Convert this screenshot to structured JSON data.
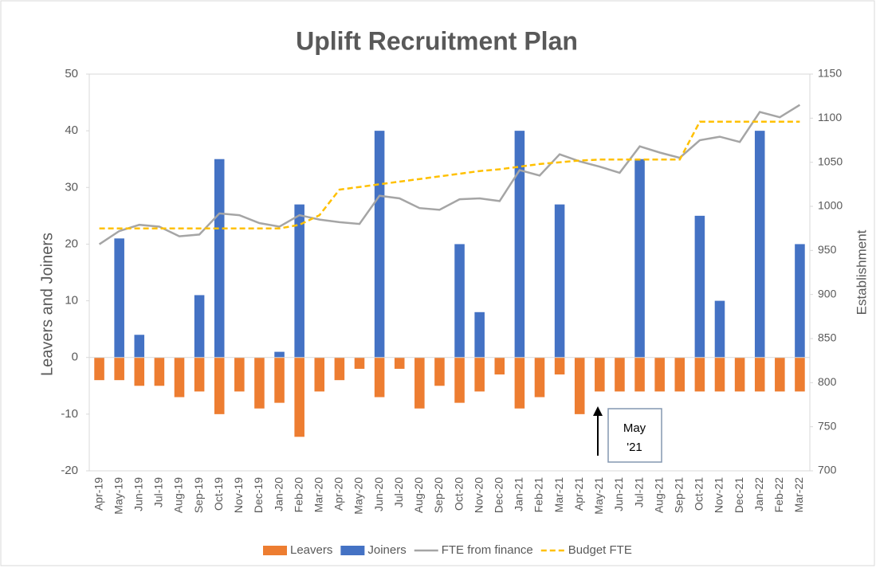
{
  "chart_data": {
    "type": "bar",
    "title": "Uplift Recruitment Plan",
    "y_label": "Leavers and Joiners",
    "y2_label": "Establishment",
    "categories": [
      "Apr-19",
      "May-19",
      "Jun-19",
      "Jul-19",
      "Aug-19",
      "Sep-19",
      "Oct-19",
      "Nov-19",
      "Dec-19",
      "Jan-20",
      "Feb-20",
      "Mar-20",
      "Apr-20",
      "May-20",
      "Jun-20",
      "Jul-20",
      "Aug-20",
      "Sep-20",
      "Oct-20",
      "Nov-20",
      "Dec-20",
      "Jan-21",
      "Feb-21",
      "Mar-21",
      "Apr-21",
      "May-21",
      "Jun-21",
      "Jul-21",
      "Aug-21",
      "Sep-21",
      "Oct-21",
      "Nov-21",
      "Dec-21",
      "Jan-22",
      "Feb-22",
      "Mar-22"
    ],
    "series": [
      {
        "name": "Leavers",
        "type": "bar",
        "color": "#ed7d31",
        "values": [
          -4,
          -4,
          -5,
          -5,
          -7,
          -6,
          -10,
          -6,
          -9,
          -8,
          -14,
          -6,
          -4,
          -2,
          -7,
          -2,
          -9,
          -5,
          -8,
          -6,
          -3,
          -9,
          -7,
          -3,
          -10,
          -6,
          -6,
          -6,
          -6,
          -6,
          -6,
          -6,
          -6,
          -6,
          -6,
          -6
        ]
      },
      {
        "name": "Joiners",
        "type": "bar",
        "color": "#4472c4",
        "values": [
          0,
          21,
          4,
          0,
          0,
          11,
          35,
          0,
          0,
          1,
          27,
          0,
          0,
          0,
          40,
          0,
          0,
          0,
          20,
          8,
          0,
          40,
          0,
          27,
          0,
          0,
          0,
          35,
          0,
          0,
          25,
          10,
          0,
          40,
          0,
          20
        ]
      },
      {
        "name": "FTE from finance",
        "type": "line",
        "axis": "y2",
        "color": "#a5a5a5",
        "values": [
          957,
          972,
          979,
          977,
          966,
          968,
          992,
          990,
          981,
          977,
          990,
          985,
          982,
          980,
          1012,
          1009,
          998,
          996,
          1008,
          1009,
          1006,
          1041,
          1035,
          1059,
          1051,
          1045,
          1038,
          1068,
          1061,
          1055,
          1075,
          1079,
          1073,
          1107,
          1101,
          1115
        ]
      },
      {
        "name": "Budget FTE",
        "type": "line",
        "axis": "y2",
        "dashed": true,
        "color": "#ffc000",
        "values": [
          975,
          975,
          975,
          975,
          975,
          975,
          975,
          975,
          975,
          975,
          979,
          990,
          1019,
          1022,
          1025,
          1028,
          1031,
          1034,
          1037,
          1040,
          1042,
          1045,
          1048,
          1050,
          1052,
          1053,
          1053,
          1053,
          1053,
          1053,
          1096,
          1096,
          1096,
          1096,
          1096,
          1096
        ]
      }
    ],
    "ylim": [
      -20,
      50
    ],
    "yticks": [
      -20,
      -10,
      0,
      10,
      20,
      30,
      40,
      50
    ],
    "y2lim": [
      700,
      1150
    ],
    "y2ticks": [
      700,
      750,
      800,
      850,
      900,
      950,
      1000,
      1050,
      1100,
      1150
    ],
    "annotation": {
      "lines": [
        "May",
        "'21"
      ]
    },
    "legend": "bottom"
  }
}
